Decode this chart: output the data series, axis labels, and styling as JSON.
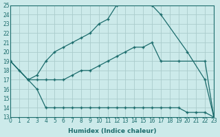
{
  "xlabel": "Humidex (Indice chaleur)",
  "bg_color": "#cceaea",
  "grid_color": "#aacccc",
  "line_color": "#1a6b6b",
  "x_min": 0,
  "x_max": 23,
  "y_min": 13,
  "y_max": 25,
  "lines": [
    {
      "x": [
        0,
        1,
        2,
        3,
        4,
        5,
        6,
        7,
        8,
        9,
        10,
        11,
        12,
        13,
        14,
        15,
        16,
        17,
        20,
        22,
        23
      ],
      "y": [
        19,
        18,
        17,
        17.5,
        19,
        20,
        20.5,
        21,
        21.5,
        22,
        23,
        23.5,
        25,
        25.5,
        25.5,
        25.5,
        25,
        24,
        20,
        17,
        13
      ]
    },
    {
      "x": [
        0,
        2,
        3,
        4,
        5,
        6,
        7,
        8,
        9,
        10,
        11,
        12,
        13,
        14,
        15,
        16,
        17,
        19,
        22,
        23
      ],
      "y": [
        19,
        17,
        17,
        17,
        17,
        17,
        17.5,
        18,
        18,
        18.5,
        19,
        19.5,
        20,
        20.5,
        20.5,
        21,
        19,
        19,
        19,
        13
      ]
    },
    {
      "x": [
        0,
        2,
        3,
        4,
        5,
        6,
        7,
        8,
        9,
        10,
        11,
        12,
        13,
        14,
        15,
        16,
        17,
        18,
        19,
        20,
        21,
        22,
        23
      ],
      "y": [
        19,
        17,
        16,
        14,
        14,
        14,
        14,
        14,
        14,
        14,
        14,
        14,
        14,
        14,
        14,
        14,
        14,
        14,
        14,
        13.5,
        13.5,
        13.5,
        13
      ]
    }
  ]
}
